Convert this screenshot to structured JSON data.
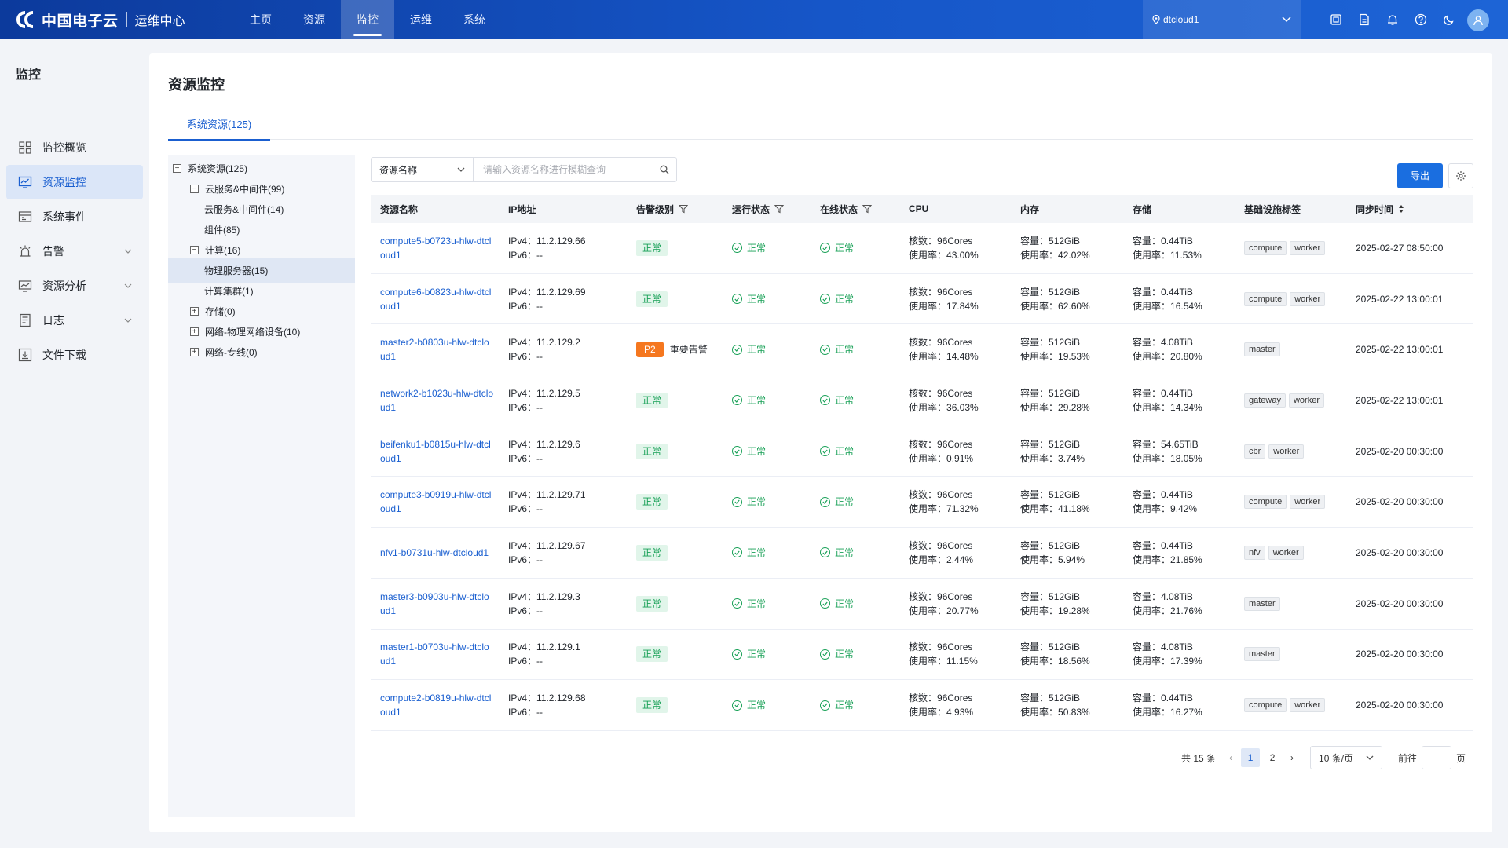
{
  "header": {
    "brand": "中国电子云",
    "subtitle": "运维中心",
    "nav": [
      "主页",
      "资源",
      "监控",
      "运维",
      "系统"
    ],
    "active_nav": "监控",
    "tenant": "dtcloud1"
  },
  "sidebar": {
    "title": "监控",
    "items": [
      {
        "label": "监控概览",
        "icon": "grid-icon"
      },
      {
        "label": "资源监控",
        "icon": "monitor-chart-icon"
      },
      {
        "label": "系统事件",
        "icon": "event-icon"
      },
      {
        "label": "告警",
        "icon": "alarm-icon"
      },
      {
        "label": "资源分析",
        "icon": "analysis-icon"
      },
      {
        "label": "日志",
        "icon": "log-icon"
      },
      {
        "label": "文件下载",
        "icon": "download-icon"
      }
    ]
  },
  "main": {
    "title": "资源监控",
    "tab": "系统资源(125)"
  },
  "tree": [
    {
      "label": "系统资源(125)",
      "toggle": "−"
    },
    {
      "label": "云服务&中间件(99)",
      "toggle": "−"
    },
    {
      "label": "云服务&中间件(14)",
      "toggle": ""
    },
    {
      "label": "组件(85)",
      "toggle": ""
    },
    {
      "label": "计算(16)",
      "toggle": "−"
    },
    {
      "label": "物理服务器(15)",
      "toggle": ""
    },
    {
      "label": "计算集群(1)",
      "toggle": ""
    },
    {
      "label": "存储(0)",
      "toggle": "+"
    },
    {
      "label": "网络-物理网络设备(10)",
      "toggle": "+"
    },
    {
      "label": "网络-专线(0)",
      "toggle": "+"
    }
  ],
  "search": {
    "select_value": "资源名称",
    "placeholder": "请输入资源名称进行模糊查询"
  },
  "toolbar": {
    "export_label": "导出"
  },
  "table": {
    "columns": [
      "资源名称",
      "IP地址",
      "告警级别",
      "运行状态",
      "在线状态",
      "CPU",
      "内存",
      "存储",
      "基础设施标签",
      "同步时间"
    ],
    "ipv4_prefix": "IPv4：",
    "ipv6_prefix": "IPv6：",
    "cores_prefix": "核数：",
    "usage_prefix": "使用率：",
    "capacity_prefix": "容量：",
    "rows": [
      {
        "name": "compute5-b0723u-hlw-dtcloud1",
        "ipv4": "11.2.129.66",
        "ipv6": "--",
        "alarm": "正常",
        "alarm_level": "",
        "run": "正常",
        "online": "正常",
        "cpu_cores": "96Cores",
        "cpu_usage": "43.00%",
        "mem_cap": "512GiB",
        "mem_usage": "42.02%",
        "sto_cap": "0.44TiB",
        "sto_usage": "11.53%",
        "tags": [
          "compute",
          "worker"
        ],
        "sync": "2025-02-27 08:50:00"
      },
      {
        "name": "compute6-b0823u-hlw-dtcloud1",
        "ipv4": "11.2.129.69",
        "ipv6": "--",
        "alarm": "正常",
        "alarm_level": "",
        "run": "正常",
        "online": "正常",
        "cpu_cores": "96Cores",
        "cpu_usage": "17.84%",
        "mem_cap": "512GiB",
        "mem_usage": "62.60%",
        "sto_cap": "0.44TiB",
        "sto_usage": "16.54%",
        "tags": [
          "compute",
          "worker"
        ],
        "sync": "2025-02-22 13:00:01"
      },
      {
        "name": "master2-b0803u-hlw-dtcloud1",
        "ipv4": "11.2.129.2",
        "ipv6": "--",
        "alarm": "重要告警",
        "alarm_level": "P2",
        "run": "正常",
        "online": "正常",
        "cpu_cores": "96Cores",
        "cpu_usage": "14.48%",
        "mem_cap": "512GiB",
        "mem_usage": "19.53%",
        "sto_cap": "4.08TiB",
        "sto_usage": "20.80%",
        "tags": [
          "master"
        ],
        "sync": "2025-02-22 13:00:01"
      },
      {
        "name": "network2-b1023u-hlw-dtcloud1",
        "ipv4": "11.2.129.5",
        "ipv6": "--",
        "alarm": "正常",
        "alarm_level": "",
        "run": "正常",
        "online": "正常",
        "cpu_cores": "96Cores",
        "cpu_usage": "36.03%",
        "mem_cap": "512GiB",
        "mem_usage": "29.28%",
        "sto_cap": "0.44TiB",
        "sto_usage": "14.34%",
        "tags": [
          "gateway",
          "worker"
        ],
        "sync": "2025-02-22 13:00:01"
      },
      {
        "name": "beifenku1-b0815u-hlw-dtcloud1",
        "ipv4": "11.2.129.6",
        "ipv6": "--",
        "alarm": "正常",
        "alarm_level": "",
        "run": "正常",
        "online": "正常",
        "cpu_cores": "96Cores",
        "cpu_usage": "0.91%",
        "mem_cap": "512GiB",
        "mem_usage": "3.74%",
        "sto_cap": "54.65TiB",
        "sto_usage": "18.05%",
        "tags": [
          "cbr",
          "worker"
        ],
        "sync": "2025-02-20 00:30:00"
      },
      {
        "name": "compute3-b0919u-hlw-dtcloud1",
        "ipv4": "11.2.129.71",
        "ipv6": "--",
        "alarm": "正常",
        "alarm_level": "",
        "run": "正常",
        "online": "正常",
        "cpu_cores": "96Cores",
        "cpu_usage": "71.32%",
        "mem_cap": "512GiB",
        "mem_usage": "41.18%",
        "sto_cap": "0.44TiB",
        "sto_usage": "9.42%",
        "tags": [
          "compute",
          "worker"
        ],
        "sync": "2025-02-20 00:30:00"
      },
      {
        "name": "nfv1-b0731u-hlw-dtcloud1",
        "ipv4": "11.2.129.67",
        "ipv6": "--",
        "alarm": "正常",
        "alarm_level": "",
        "run": "正常",
        "online": "正常",
        "cpu_cores": "96Cores",
        "cpu_usage": "2.44%",
        "mem_cap": "512GiB",
        "mem_usage": "5.94%",
        "sto_cap": "0.44TiB",
        "sto_usage": "21.85%",
        "tags": [
          "nfv",
          "worker"
        ],
        "sync": "2025-02-20 00:30:00"
      },
      {
        "name": "master3-b0903u-hlw-dtcloud1",
        "ipv4": "11.2.129.3",
        "ipv6": "--",
        "alarm": "正常",
        "alarm_level": "",
        "run": "正常",
        "online": "正常",
        "cpu_cores": "96Cores",
        "cpu_usage": "20.77%",
        "mem_cap": "512GiB",
        "mem_usage": "19.28%",
        "sto_cap": "4.08TiB",
        "sto_usage": "21.76%",
        "tags": [
          "master"
        ],
        "sync": "2025-02-20 00:30:00"
      },
      {
        "name": "master1-b0703u-hlw-dtcloud1",
        "ipv4": "11.2.129.1",
        "ipv6": "--",
        "alarm": "正常",
        "alarm_level": "",
        "run": "正常",
        "online": "正常",
        "cpu_cores": "96Cores",
        "cpu_usage": "11.15%",
        "mem_cap": "512GiB",
        "mem_usage": "18.56%",
        "sto_cap": "4.08TiB",
        "sto_usage": "17.39%",
        "tags": [
          "master"
        ],
        "sync": "2025-02-20 00:30:00"
      },
      {
        "name": "compute2-b0819u-hlw-dtcloud1",
        "ipv4": "11.2.129.68",
        "ipv6": "--",
        "alarm": "正常",
        "alarm_level": "",
        "run": "正常",
        "online": "正常",
        "cpu_cores": "96Cores",
        "cpu_usage": "4.93%",
        "mem_cap": "512GiB",
        "mem_usage": "50.83%",
        "sto_cap": "0.44TiB",
        "sto_usage": "16.27%",
        "tags": [
          "compute",
          "worker"
        ],
        "sync": "2025-02-20 00:30:00"
      }
    ]
  },
  "pagination": {
    "total": "共 15 条",
    "pages": [
      "1",
      "2"
    ],
    "current": "1",
    "page_size": "10 条/页",
    "goto_label": "前往",
    "page_suffix": "页"
  },
  "colors": {
    "primary": "#1a5fd0",
    "success": "#17a056",
    "warning": "#f5771f",
    "header_bg": "#1656c8"
  }
}
